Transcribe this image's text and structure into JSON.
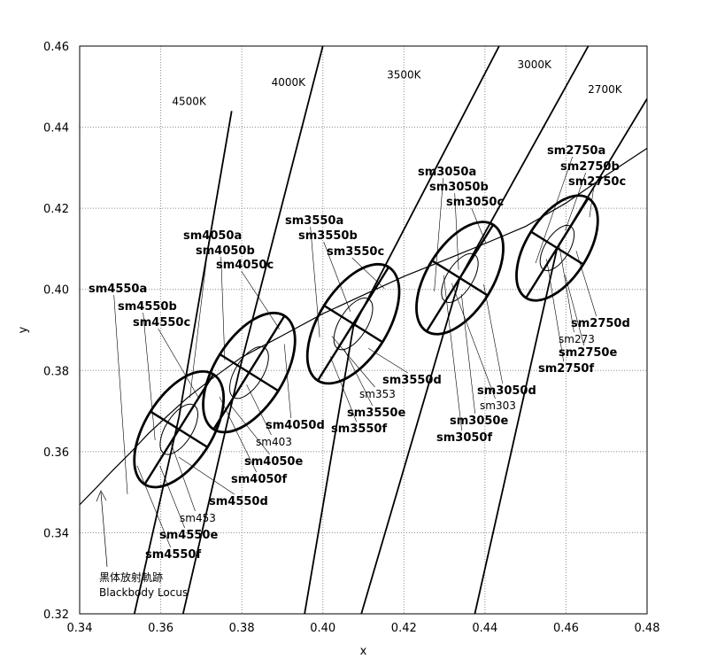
{
  "chart_data": {
    "type": "scatter",
    "xlabel": "x",
    "ylabel": "y",
    "xlim": [
      0.34,
      0.48
    ],
    "ylim": [
      0.32,
      0.46
    ],
    "x_ticks": [
      "0.34",
      "0.36",
      "0.38",
      "0.40",
      "0.42",
      "0.44",
      "0.46",
      "0.48"
    ],
    "y_ticks": [
      "0.32",
      "0.34",
      "0.36",
      "0.38",
      "0.40",
      "0.42",
      "0.44",
      "0.46"
    ],
    "grid": "dotted",
    "blackbody_locus": {
      "label_jp": "黒体放射軌跡",
      "label_en": "Blackbody Locus",
      "points": [
        [
          0.34,
          0.3469
        ],
        [
          0.3441,
          0.3511
        ],
        [
          0.348,
          0.3552
        ],
        [
          0.3525,
          0.3597
        ],
        [
          0.357,
          0.3645
        ],
        [
          0.3622,
          0.3693
        ],
        [
          0.3665,
          0.3732
        ],
        [
          0.372,
          0.3775
        ],
        [
          0.38,
          0.3833
        ],
        [
          0.39,
          0.3886
        ],
        [
          0.4,
          0.394
        ],
        [
          0.41,
          0.3986
        ],
        [
          0.42,
          0.4032
        ],
        [
          0.43,
          0.4072
        ],
        [
          0.44,
          0.4113
        ],
        [
          0.45,
          0.4155
        ],
        [
          0.46,
          0.4213
        ],
        [
          0.47,
          0.4282
        ],
        [
          0.48,
          0.4348
        ]
      ]
    },
    "isotherms": [
      {
        "label": "4500K",
        "points": [
          [
            0.3535,
            0.32
          ],
          [
            0.3645,
            0.3685
          ],
          [
            0.3775,
            0.444
          ]
        ]
      },
      {
        "label": "4000K",
        "points": [
          [
            0.3655,
            0.32
          ],
          [
            0.3792,
            0.3792
          ],
          [
            0.4,
            0.46
          ]
        ]
      },
      {
        "label": "3500K",
        "points": [
          [
            0.3955,
            0.32
          ],
          [
            0.4075,
            0.3907
          ],
          [
            0.4435,
            0.46
          ]
        ]
      },
      {
        "label": "3000K",
        "points": [
          [
            0.4095,
            0.32
          ],
          [
            0.4338,
            0.4028
          ],
          [
            0.4655,
            0.46
          ]
        ]
      },
      {
        "label": "2700K",
        "points": [
          [
            0.4375,
            0.32
          ],
          [
            0.4578,
            0.4102
          ],
          [
            0.48,
            0.447
          ]
        ]
      }
    ],
    "ellipses": [
      {
        "center": [
          0.3645,
          0.3655
        ],
        "outer": [
          0.016,
          0.0083
        ],
        "inner": [
          0.007,
          0.0033
        ],
        "angle_deg": 58
      },
      {
        "center": [
          0.3818,
          0.3795
        ],
        "outer": [
          0.0165,
          0.0085
        ],
        "inner": [
          0.0072,
          0.0034
        ],
        "angle_deg": 58
      },
      {
        "center": [
          0.4075,
          0.3915
        ],
        "outer": [
          0.0165,
          0.0085
        ],
        "inner": [
          0.0072,
          0.0034
        ],
        "angle_deg": 58
      },
      {
        "center": [
          0.4338,
          0.4028
        ],
        "outer": [
          0.0155,
          0.0081
        ],
        "inner": [
          0.0068,
          0.0032
        ],
        "angle_deg": 58
      },
      {
        "center": [
          0.4578,
          0.4102
        ],
        "outer": [
          0.0145,
          0.0076
        ],
        "inner": [
          0.0063,
          0.003
        ],
        "angle_deg": 58
      }
    ],
    "labels": [
      {
        "text": "sm4550a",
        "weight": "bold",
        "anchor": [
          0.3518,
          0.3495
        ]
      },
      {
        "text": "sm4550b",
        "weight": "bold",
        "anchor": [
          0.3586,
          0.3628
        ]
      },
      {
        "text": "sm4550c",
        "weight": "bold",
        "anchor": [
          0.3692,
          0.3735
        ]
      },
      {
        "text": "sm4550d",
        "weight": "bold",
        "anchor": [
          0.3645,
          0.3586
        ]
      },
      {
        "text": "sm453",
        "weight": "normal",
        "anchor": [
          0.3624,
          0.3625
        ]
      },
      {
        "text": "sm4550e",
        "weight": "bold",
        "anchor": [
          0.3598,
          0.3565
        ]
      },
      {
        "text": "sm4550f",
        "weight": "bold",
        "anchor": [
          0.3542,
          0.3565
        ]
      },
      {
        "text": "sm4050a",
        "weight": "bold",
        "anchor": [
          0.3672,
          0.3733
        ]
      },
      {
        "text": "sm4050b",
        "weight": "bold",
        "anchor": [
          0.3758,
          0.3825
        ]
      },
      {
        "text": "sm4050c",
        "weight": "bold",
        "anchor": [
          0.3893,
          0.3902
        ]
      },
      {
        "text": "sm4050d",
        "weight": "bold",
        "anchor": [
          0.3905,
          0.3865
        ]
      },
      {
        "text": "sm403",
        "weight": "normal",
        "anchor": [
          0.3812,
          0.3765
        ]
      },
      {
        "text": "sm4050e",
        "weight": "bold",
        "anchor": [
          0.3772,
          0.3715
        ]
      },
      {
        "text": "sm4050f",
        "weight": "bold",
        "anchor": [
          0.3745,
          0.3735
        ]
      },
      {
        "text": "sm3550a",
        "weight": "bold",
        "anchor": [
          0.3992,
          0.3882
        ]
      },
      {
        "text": "sm3550b",
        "weight": "bold",
        "anchor": [
          0.4068,
          0.3945
        ]
      },
      {
        "text": "sm3550c",
        "weight": "bold",
        "anchor": [
          0.4152,
          0.4002
        ]
      },
      {
        "text": "sm3550d",
        "weight": "bold",
        "anchor": [
          0.4112,
          0.3855
        ]
      },
      {
        "text": "sm353",
        "weight": "normal",
        "anchor": [
          0.4022,
          0.3885
        ]
      },
      {
        "text": "sm3550e",
        "weight": "bold",
        "anchor": [
          0.4052,
          0.3854
        ]
      },
      {
        "text": "sm3550f",
        "weight": "bold",
        "anchor": [
          0.4018,
          0.3835
        ]
      },
      {
        "text": "sm3050a",
        "weight": "bold",
        "anchor": [
          0.4275,
          0.3995
        ]
      },
      {
        "text": "sm3050b",
        "weight": "bold",
        "anchor": [
          0.4335,
          0.4048
        ]
      },
      {
        "text": "sm3050c",
        "weight": "bold",
        "anchor": [
          0.4402,
          0.4115
        ]
      },
      {
        "text": "sm3050d",
        "weight": "bold",
        "anchor": [
          0.4397,
          0.4012
        ]
      },
      {
        "text": "sm303",
        "weight": "normal",
        "anchor": [
          0.4318,
          0.4015
        ]
      },
      {
        "text": "sm3050e",
        "weight": "bold",
        "anchor": [
          0.4342,
          0.3988
        ]
      },
      {
        "text": "sm3050f",
        "weight": "bold",
        "anchor": [
          0.4298,
          0.4035
        ]
      },
      {
        "text": "sm2750a",
        "weight": "bold",
        "anchor": [
          0.4525,
          0.4065
        ]
      },
      {
        "text": "sm2750b",
        "weight": "bold",
        "anchor": [
          0.4598,
          0.4145
        ]
      },
      {
        "text": "sm2750c",
        "weight": "bold",
        "anchor": [
          0.4658,
          0.4178
        ]
      },
      {
        "text": "sm2750d",
        "weight": "bold",
        "anchor": [
          0.4625,
          0.4095
        ]
      },
      {
        "text": "sm273",
        "weight": "normal",
        "anchor": [
          0.4582,
          0.4115
        ]
      },
      {
        "text": "sm2750e",
        "weight": "bold",
        "anchor": [
          0.4598,
          0.4035
        ]
      },
      {
        "text": "sm2750f",
        "weight": "bold",
        "anchor": [
          0.4552,
          0.4075
        ]
      }
    ]
  }
}
